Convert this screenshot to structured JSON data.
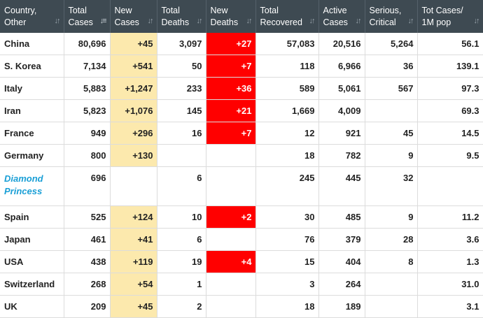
{
  "table": {
    "columns": [
      {
        "line1": "Country,",
        "line2": "Other",
        "sort_icon": "sort-updown-icon"
      },
      {
        "line1": "Total",
        "line2": "Cases",
        "sort_icon": "sort-desc-icon"
      },
      {
        "line1": "New",
        "line2": "Cases",
        "sort_icon": "sort-updown-icon"
      },
      {
        "line1": "Total",
        "line2": "Deaths",
        "sort_icon": "sort-updown-icon"
      },
      {
        "line1": "New",
        "line2": "Deaths",
        "sort_icon": "sort-updown-icon"
      },
      {
        "line1": "Total",
        "line2": "Recovered",
        "sort_icon": "sort-updown-icon"
      },
      {
        "line1": "Active",
        "line2": "Cases",
        "sort_icon": "sort-updown-icon"
      },
      {
        "line1": "Serious,",
        "line2": "Critical",
        "sort_icon": "sort-updown-icon"
      },
      {
        "line1": "Tot Cases/",
        "line2": "1M pop",
        "sort_icon": "sort-updown-icon"
      }
    ],
    "rows": [
      {
        "country": "China",
        "total_cases": "80,696",
        "new_cases": "+45",
        "total_deaths": "3,097",
        "new_deaths": "+27",
        "total_recovered": "57,083",
        "active_cases": "20,516",
        "serious_critical": "5,264",
        "tot_cases_per_1m": "56.1"
      },
      {
        "country": "S. Korea",
        "total_cases": "7,134",
        "new_cases": "+541",
        "total_deaths": "50",
        "new_deaths": "+7",
        "total_recovered": "118",
        "active_cases": "6,966",
        "serious_critical": "36",
        "tot_cases_per_1m": "139.1"
      },
      {
        "country": "Italy",
        "total_cases": "5,883",
        "new_cases": "+1,247",
        "total_deaths": "233",
        "new_deaths": "+36",
        "total_recovered": "589",
        "active_cases": "5,061",
        "serious_critical": "567",
        "tot_cases_per_1m": "97.3"
      },
      {
        "country": "Iran",
        "total_cases": "5,823",
        "new_cases": "+1,076",
        "total_deaths": "145",
        "new_deaths": "+21",
        "total_recovered": "1,669",
        "active_cases": "4,009",
        "serious_critical": "",
        "tot_cases_per_1m": "69.3"
      },
      {
        "country": "France",
        "total_cases": "949",
        "new_cases": "+296",
        "total_deaths": "16",
        "new_deaths": "+7",
        "total_recovered": "12",
        "active_cases": "921",
        "serious_critical": "45",
        "tot_cases_per_1m": "14.5"
      },
      {
        "country": "Germany",
        "total_cases": "800",
        "new_cases": "+130",
        "total_deaths": "",
        "new_deaths": "",
        "total_recovered": "18",
        "active_cases": "782",
        "serious_critical": "9",
        "tot_cases_per_1m": "9.5"
      },
      {
        "country": "Diamond Princess",
        "total_cases": "696",
        "new_cases": "",
        "total_deaths": "6",
        "new_deaths": "",
        "total_recovered": "245",
        "active_cases": "445",
        "serious_critical": "32",
        "tot_cases_per_1m": ""
      },
      {
        "country": "Spain",
        "total_cases": "525",
        "new_cases": "+124",
        "total_deaths": "10",
        "new_deaths": "+2",
        "total_recovered": "30",
        "active_cases": "485",
        "serious_critical": "9",
        "tot_cases_per_1m": "11.2"
      },
      {
        "country": "Japan",
        "total_cases": "461",
        "new_cases": "+41",
        "total_deaths": "6",
        "new_deaths": "",
        "total_recovered": "76",
        "active_cases": "379",
        "serious_critical": "28",
        "tot_cases_per_1m": "3.6"
      },
      {
        "country": "USA",
        "total_cases": "438",
        "new_cases": "+119",
        "total_deaths": "19",
        "new_deaths": "+4",
        "total_recovered": "15",
        "active_cases": "404",
        "serious_critical": "8",
        "tot_cases_per_1m": "1.3"
      },
      {
        "country": "Switzerland",
        "total_cases": "268",
        "new_cases": "+54",
        "total_deaths": "1",
        "new_deaths": "",
        "total_recovered": "3",
        "active_cases": "264",
        "serious_critical": "",
        "tot_cases_per_1m": "31.0"
      },
      {
        "country": "UK",
        "total_cases": "209",
        "new_cases": "+45",
        "total_deaths": "2",
        "new_deaths": "",
        "total_recovered": "18",
        "active_cases": "189",
        "serious_critical": "",
        "tot_cases_per_1m": "3.1"
      }
    ]
  },
  "colors": {
    "header_bg": "#3e4a52",
    "new_cases_highlight": "#fce9ad",
    "new_deaths_highlight": "#ff0000",
    "link_text": "#1a9fd6"
  }
}
